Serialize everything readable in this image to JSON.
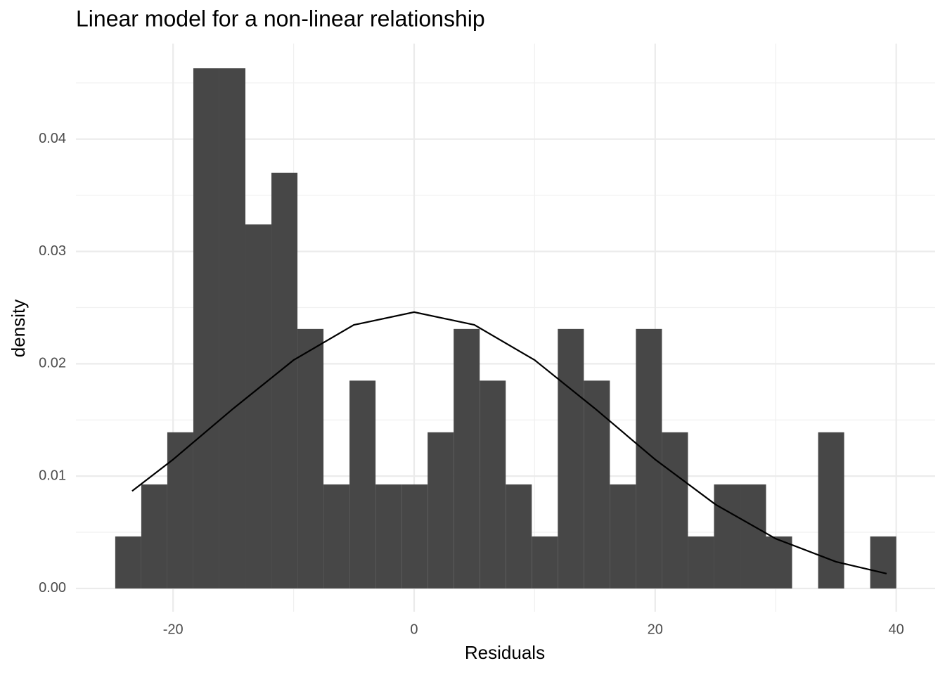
{
  "chart_data": {
    "type": "histogram",
    "title": "Linear model for a non-linear relationship",
    "x_label": "Residuals",
    "y_label": "density",
    "bins": [
      -24.8,
      -22.64,
      -20.48,
      -18.32,
      -16.16,
      -14,
      -11.84,
      -9.68,
      -7.52,
      -5.36,
      -3.2,
      -1.04,
      1.12,
      3.28,
      5.44,
      7.6,
      9.76,
      11.92,
      14.08,
      16.24,
      18.4,
      20.56,
      22.72,
      24.88,
      27.04,
      29.2,
      31.36,
      33.52,
      35.68,
      37.84,
      40
    ],
    "values": [
      0.00463,
      0.00926,
      0.0139,
      0.0463,
      0.0463,
      0.0324,
      0.037,
      0.0231,
      0.00926,
      0.0185,
      0.00926,
      0.00926,
      0.0139,
      0.0231,
      0.0185,
      0.00926,
      0.00463,
      0.0231,
      0.0185,
      0.00926,
      0.0231,
      0.0139,
      0.00463,
      0.00926,
      0.00926,
      0.00463,
      0,
      0.0139,
      0,
      0.00463
    ],
    "color": "#474747",
    "curve": {
      "x": [
        -23.4,
        -20,
        -15,
        -10,
        -5,
        0,
        5,
        10,
        15,
        20,
        25,
        30,
        35,
        39.2
      ],
      "values": [
        0.00867,
        0.01148,
        0.01602,
        0.02033,
        0.02346,
        0.0246,
        0.02346,
        0.02033,
        0.01602,
        0.01148,
        0.00748,
        0.00443,
        0.00238,
        0.00132
      ],
      "color": "#000000"
    },
    "xlim": [
      -28.06,
      43.23
    ],
    "ylim": [
      -0.00207,
      0.0485
    ],
    "xticks": [
      -20,
      0,
      20,
      40
    ],
    "yticks": [
      {
        "value": 0,
        "label": "0.00"
      },
      {
        "value": 0.01,
        "label": "0.01"
      },
      {
        "value": 0.02,
        "label": "0.02"
      },
      {
        "value": 0.03,
        "label": "0.03"
      },
      {
        "value": 0.04,
        "label": "0.04"
      }
    ],
    "xminorticks": [
      -10,
      10,
      30
    ],
    "yminorticks": [
      0.005,
      0.015,
      0.025,
      0.035,
      0.045
    ],
    "grid": true
  }
}
